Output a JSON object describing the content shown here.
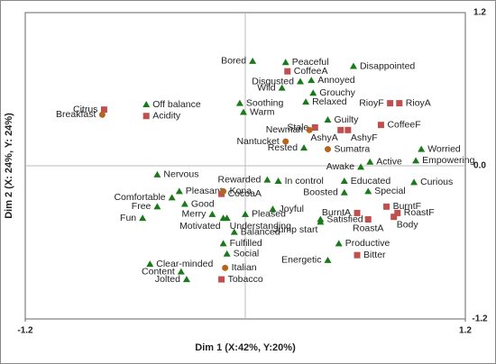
{
  "chart_data": {
    "type": "scatter",
    "xlabel": "Dim 1 (X:42%, Y:20%)",
    "ylabel": "Dim 2 (X: 24%, Y: 24%)",
    "xlim": [
      -1.2,
      1.2
    ],
    "ylim": [
      -1.2,
      1.2
    ],
    "xticks": [
      -1.2,
      1.2
    ],
    "yticks": [
      -1.2,
      {
        "value": 0,
        "label": "0.0"
      },
      1.2
    ],
    "series": [
      {
        "color": "#1a7a1a",
        "marker": "triangle",
        "labels": [
          "Bored",
          "Peaceful",
          "Disappointed",
          "Disgusted",
          "Annoyed",
          "Wild",
          "Grouchy",
          "Relaxed",
          "Off balance",
          "Soothing",
          "Warm",
          "Guilty",
          "Worried",
          "Rested",
          "Active",
          "Awake",
          "Empowering",
          "Nervous",
          "Rewarded",
          "In control",
          "Educated",
          "Curious",
          "Boosted",
          "Special",
          "Pleasant",
          "Comfortable",
          "Good",
          "Free",
          "Joyful",
          "Fun",
          "Merry",
          "Motivated",
          "Understanding",
          "Pleased",
          "Satisfied",
          "Jump start",
          "Balanced",
          "Productive",
          "Fulfilled",
          "Social",
          "Energetic",
          "Clear-minded",
          "Content",
          "Jolted"
        ],
        "x": [
          0.04,
          0.22,
          0.59,
          0.3,
          0.36,
          0.2,
          0.37,
          0.33,
          -0.54,
          -0.03,
          -0.01,
          0.45,
          0.96,
          0.32,
          0.68,
          0.63,
          0.93,
          -0.48,
          0.12,
          0.18,
          0.54,
          0.92,
          0.54,
          0.67,
          -0.36,
          -0.4,
          -0.33,
          -0.48,
          0.15,
          -0.56,
          -0.18,
          -0.12,
          -0.1,
          0.0,
          0.41,
          0.41,
          -0.06,
          0.51,
          -0.12,
          -0.1,
          0.45,
          -0.52,
          -0.35,
          -0.32
        ],
        "values": [
          0.82,
          0.81,
          0.78,
          0.66,
          0.67,
          0.61,
          0.57,
          0.5,
          0.48,
          0.49,
          0.42,
          0.36,
          0.13,
          0.14,
          0.03,
          -0.01,
          0.04,
          -0.07,
          -0.11,
          -0.12,
          -0.12,
          -0.13,
          -0.21,
          -0.2,
          -0.2,
          -0.25,
          -0.3,
          -0.32,
          -0.34,
          -0.41,
          -0.38,
          -0.41,
          -0.41,
          -0.38,
          -0.42,
          -0.44,
          -0.52,
          -0.61,
          -0.61,
          -0.69,
          -0.74,
          -0.77,
          -0.83,
          -0.89
        ]
      },
      {
        "color": "#c0504d",
        "marker": "square",
        "labels": [
          "CoffeeA",
          "RioyF",
          "RioyA",
          "Acidity",
          "Citrus",
          "CoffeeF",
          "Stale",
          "AshyA",
          "AshyF",
          "CocoaA",
          "BurntF",
          "BurntA",
          "RoastF",
          "Body",
          "RoastA",
          "Bitter",
          "Tobacco"
        ],
        "x": [
          0.23,
          0.79,
          0.84,
          -0.54,
          -0.77,
          0.74,
          0.38,
          0.52,
          0.56,
          -0.13,
          0.77,
          0.61,
          0.83,
          0.81,
          0.67,
          0.61,
          -0.13
        ],
        "values": [
          0.74,
          0.49,
          0.49,
          0.39,
          0.44,
          0.32,
          0.3,
          0.28,
          0.28,
          -0.22,
          -0.32,
          -0.37,
          -0.37,
          -0.4,
          -0.42,
          -0.7,
          -0.89
        ]
      },
      {
        "color": "#b5651d",
        "marker": "circle",
        "labels": [
          "Breakfast",
          "Newman",
          "Nantucket",
          "Sumatra",
          "Kona",
          "Italian"
        ],
        "x": [
          -0.78,
          0.35,
          0.22,
          0.45,
          -0.12,
          -0.11
        ],
        "values": [
          0.4,
          0.28,
          0.19,
          0.13,
          -0.2,
          -0.8
        ]
      }
    ]
  }
}
